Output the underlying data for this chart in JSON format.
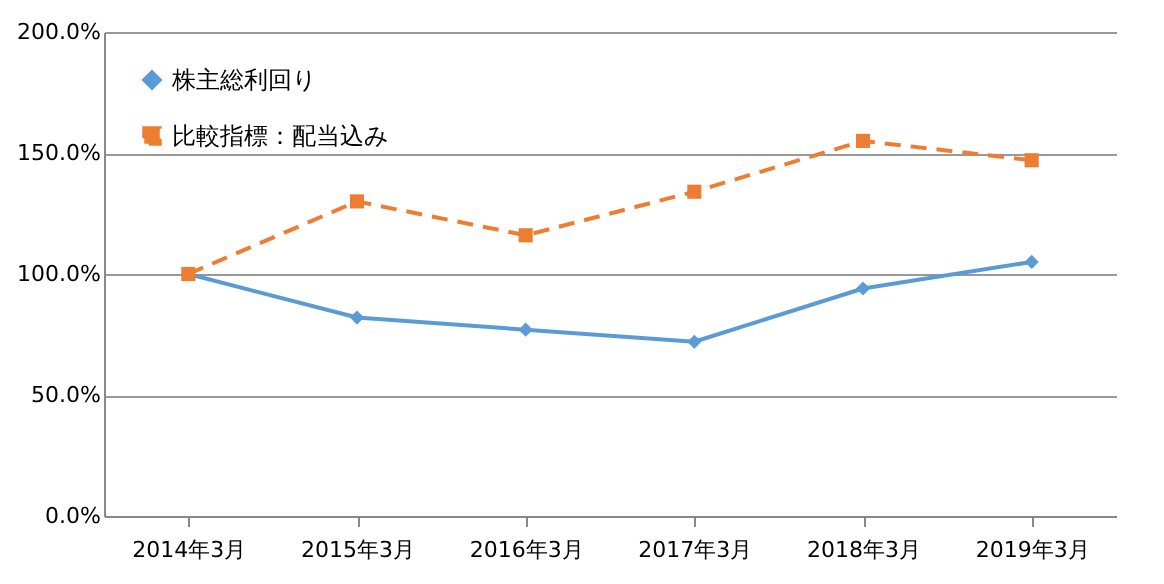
{
  "chart_data": {
    "type": "line",
    "categories": [
      "2014年3月",
      "2015年3月",
      "2016年3月",
      "2017年3月",
      "2018年3月",
      "2019年3月"
    ],
    "series": [
      {
        "name": "株主総利回り",
        "color": "#5b9bd5",
        "marker": "diamond",
        "line_style": "solid",
        "values": [
          100,
          82,
          77,
          72,
          94,
          105
        ]
      },
      {
        "name": "比較指標：配当込み",
        "color": "#ed7d31",
        "marker": "square",
        "line_style": "dashed",
        "values": [
          100,
          130,
          116,
          134,
          155,
          147
        ]
      }
    ],
    "ylim": [
      0,
      200
    ],
    "yticks": [
      {
        "value": 0,
        "label": "0.0%"
      },
      {
        "value": 50,
        "label": "50.0%"
      },
      {
        "value": 100,
        "label": "100.0%"
      },
      {
        "value": 150,
        "label": "150.0%"
      },
      {
        "value": 200,
        "label": "200.0%"
      }
    ],
    "grid": "y",
    "legend": "top left"
  }
}
